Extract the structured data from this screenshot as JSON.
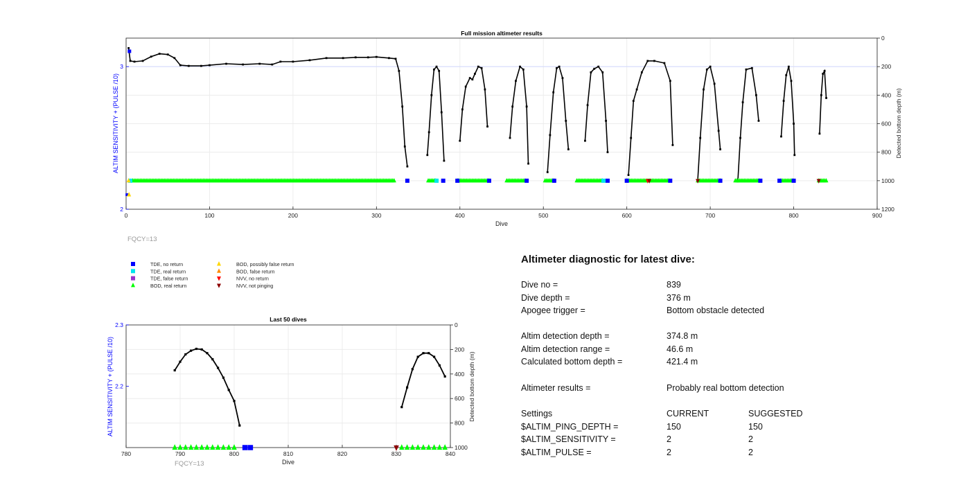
{
  "chart_data": [
    {
      "type": "line",
      "title": "Full mission altimeter results",
      "xlabel": "Dive",
      "ylabel_left": "ALTIM SENSITIVITY + (PULSE /10)",
      "ylabel_right": "Detected bottom depth (m)",
      "xlim": [
        0,
        900
      ],
      "ylim_left": [
        2,
        3.2
      ],
      "ylim_right_reversed": [
        0,
        1200
      ],
      "x_ticks": [
        "0",
        "100",
        "200",
        "300",
        "400",
        "500",
        "600",
        "700",
        "800",
        "900"
      ],
      "y_left_ticks": [
        "2",
        "3"
      ],
      "y_right_ticks": [
        "0",
        "200",
        "400",
        "600",
        "800",
        "1000",
        "1200"
      ],
      "grid": true,
      "reference_line_y": 3,
      "note": "FQCY=13",
      "series": [
        {
          "name": "Detected bottom depth",
          "segments": [
            [
              [
                3,
                70
              ],
              [
                5,
                160
              ],
              [
                10,
                165
              ],
              [
                20,
                160
              ],
              [
                30,
                130
              ],
              [
                40,
                110
              ],
              [
                50,
                115
              ],
              [
                58,
                140
              ],
              [
                65,
                190
              ],
              [
                75,
                195
              ],
              [
                90,
                195
              ],
              [
                100,
                190
              ],
              [
                120,
                180
              ],
              [
                140,
                185
              ],
              [
                160,
                180
              ],
              [
                175,
                185
              ],
              [
                185,
                165
              ],
              [
                200,
                165
              ],
              [
                220,
                155
              ],
              [
                240,
                140
              ],
              [
                260,
                140
              ],
              [
                275,
                135
              ],
              [
                290,
                135
              ],
              [
                300,
                132
              ],
              [
                315,
                140
              ],
              [
                323,
                145
              ],
              [
                327,
                230
              ],
              [
                331,
                480
              ],
              [
                334,
                760
              ],
              [
                337,
                900
              ]
            ],
            [
              [
                361,
                820
              ],
              [
                363,
                660
              ],
              [
                366,
                400
              ],
              [
                369,
                220
              ],
              [
                372,
                200
              ],
              [
                375,
                230
              ],
              [
                378,
                520
              ],
              [
                381,
                860
              ]
            ],
            [
              [
                400,
                720
              ],
              [
                403,
                500
              ],
              [
                407,
                340
              ],
              [
                412,
                280
              ],
              [
                415,
                290
              ],
              [
                418,
                250
              ],
              [
                422,
                200
              ],
              [
                426,
                210
              ],
              [
                430,
                360
              ],
              [
                433,
                620
              ]
            ],
            [
              [
                460,
                700
              ],
              [
                463,
                480
              ],
              [
                467,
                300
              ],
              [
                472,
                200
              ],
              [
                476,
                220
              ],
              [
                480,
                480
              ],
              [
                482,
                880
              ]
            ],
            [
              [
                505,
                940
              ],
              [
                508,
                680
              ],
              [
                512,
                380
              ],
              [
                516,
                210
              ],
              [
                519,
                200
              ],
              [
                523,
                280
              ],
              [
                527,
                580
              ],
              [
                530,
                780
              ]
            ],
            [
              [
                550,
                720
              ],
              [
                553,
                470
              ],
              [
                557,
                240
              ],
              [
                561,
                215
              ],
              [
                566,
                200
              ],
              [
                571,
                240
              ],
              [
                575,
                580
              ],
              [
                577,
                800
              ]
            ],
            [
              [
                602,
                960
              ],
              [
                605,
                700
              ],
              [
                608,
                440
              ],
              [
                612,
                360
              ],
              [
                618,
                240
              ],
              [
                625,
                160
              ],
              [
                633,
                160
              ],
              [
                645,
                175
              ],
              [
                652,
                300
              ],
              [
                655,
                750
              ]
            ],
            [
              [
                685,
                1000
              ],
              [
                688,
                700
              ],
              [
                692,
                360
              ],
              [
                696,
                220
              ],
              [
                700,
                200
              ],
              [
                705,
                320
              ],
              [
                710,
                650
              ],
              [
                712,
                780
              ]
            ],
            [
              [
                733,
                1005
              ],
              [
                736,
                700
              ],
              [
                739,
                450
              ],
              [
                743,
                220
              ],
              [
                750,
                210
              ],
              [
                755,
                400
              ],
              [
                758,
                580
              ]
            ],
            [
              [
                785,
                690
              ],
              [
                788,
                440
              ],
              [
                791,
                260
              ],
              [
                794,
                200
              ],
              [
                797,
                300
              ],
              [
                800,
                600
              ],
              [
                801,
                820
              ]
            ],
            [
              [
                831,
                670
              ],
              [
                833,
                400
              ],
              [
                835,
                250
              ],
              [
                837,
                230
              ],
              [
                839,
                420
              ]
            ]
          ]
        },
        {
          "name": "BOD, real return",
          "symbol": "triangle-up",
          "color": "#00ff00",
          "ranges": [
            [
              8,
              323
            ],
            [
              362,
              372
            ],
            [
              397,
              435
            ],
            [
              456,
              479
            ],
            [
              502,
              513
            ],
            [
              540,
              572
            ],
            [
              600,
              652
            ],
            [
              685,
              712
            ],
            [
              730,
              760
            ],
            [
              785,
              800
            ],
            [
              830,
              840
            ]
          ]
        },
        {
          "name": "TDE, no return",
          "symbol": "square",
          "color": "#0000ff",
          "points": [
            337,
            380,
            397,
            435,
            480,
            513,
            577,
            600,
            652,
            712,
            760,
            783,
            800
          ]
        },
        {
          "name": "TDE, real return",
          "symbol": "square",
          "color": "#00e5ee",
          "points": [
            5,
            372,
            572
          ]
        },
        {
          "name": "NVV, no return",
          "symbol": "triangle-down",
          "color": "#ff0000",
          "points": [
            625
          ]
        },
        {
          "name": "NVV, not pinging",
          "symbol": "triangle-down",
          "color": "#8b0000",
          "points": [
            627,
            685,
            830
          ]
        },
        {
          "name": "BOD, possibly false return",
          "symbol": "triangle-up",
          "color": "#ffd700",
          "points": [
            3
          ]
        }
      ]
    },
    {
      "type": "line",
      "title": "Last 50 dives",
      "xlabel": "Dive",
      "ylabel_left": "ALTIM SENSITIVITY + (PULSE /10)",
      "ylabel_right": "Detected bottom depth (m)",
      "xlim": [
        780,
        840
      ],
      "ylim_left": [
        2.1,
        2.3
      ],
      "ylim_right_reversed": [
        0,
        1000
      ],
      "x_ticks": [
        "780",
        "790",
        "800",
        "810",
        "820",
        "830",
        "840"
      ],
      "y_left_ticks": [
        "2.2",
        "2.3"
      ],
      "y_right_ticks": [
        "0",
        "200",
        "400",
        "600",
        "800",
        "1000"
      ],
      "grid": true,
      "note": "FQCY=13",
      "series": [
        {
          "name": "Detected bottom depth",
          "segments": [
            [
              [
                789,
                370
              ],
              [
                790,
                300
              ],
              [
                791,
                240
              ],
              [
                792,
                210
              ],
              [
                793,
                195
              ],
              [
                794,
                200
              ],
              [
                795,
                230
              ],
              [
                796,
                280
              ],
              [
                797,
                350
              ],
              [
                798,
                430
              ],
              [
                799,
                530
              ],
              [
                800,
                620
              ],
              [
                801,
                820
              ]
            ],
            [
              [
                831,
                670
              ],
              [
                832,
                510
              ],
              [
                833,
                360
              ],
              [
                834,
                260
              ],
              [
                835,
                230
              ],
              [
                836,
                230
              ],
              [
                837,
                260
              ],
              [
                838,
                330
              ],
              [
                839,
                420
              ]
            ]
          ]
        },
        {
          "name": "BOD, real return",
          "symbol": "triangle-up",
          "color": "#00ff00",
          "points": [
            789,
            790,
            791,
            792,
            793,
            794,
            795,
            796,
            797,
            798,
            799,
            800,
            831,
            832,
            833,
            834,
            835,
            836,
            837,
            838,
            839
          ]
        },
        {
          "name": "TDE, no return",
          "symbol": "square",
          "color": "#0000ff",
          "points": [
            802,
            803
          ]
        },
        {
          "name": "NVV, not pinging",
          "symbol": "triangle-down",
          "color": "#8b0000",
          "points": [
            830
          ]
        }
      ]
    }
  ],
  "legend": {
    "col1": [
      {
        "label": "TDE, no return",
        "symbol": "square",
        "color": "#0000ff"
      },
      {
        "label": "TDE, real return",
        "symbol": "square",
        "color": "#00e5ee"
      },
      {
        "label": "TDE, false return",
        "symbol": "square",
        "color": "#9932cc"
      },
      {
        "label": "BOD, real return",
        "symbol": "triangle-up",
        "color": "#00ff00"
      }
    ],
    "col2": [
      {
        "label": "BOD, possibly false return",
        "symbol": "triangle-up",
        "color": "#ffd700"
      },
      {
        "label": "BOD, false return",
        "symbol": "triangle-up",
        "color": "#ff8c00"
      },
      {
        "label": "NVV, no return",
        "symbol": "triangle-down",
        "color": "#ff0000"
      },
      {
        "label": "NVV, not pinging",
        "symbol": "triangle-down",
        "color": "#8b0000"
      }
    ]
  },
  "diagnostic": {
    "title": "Altimeter diagnostic for latest dive:",
    "dive_no_label": "Dive no =",
    "dive_no": "839",
    "dive_depth_label": "Dive depth =",
    "dive_depth": "376 m",
    "apogee_label": "Apogee trigger =",
    "apogee": "Bottom obstacle detected",
    "altim_depth_label": "Altim detection depth =",
    "altim_depth": "374.8 m",
    "altim_range_label": "Altim detection range =",
    "altim_range": "46.6 m",
    "calc_depth_label": "Calculated bottom depth =",
    "calc_depth": "421.4 m",
    "results_label": "Altimeter results =",
    "results": "Probably real bottom detection",
    "settings_label": "Settings",
    "current_label": "CURRENT",
    "suggested_label": "SUGGESTED",
    "settings": [
      {
        "name": "$ALTIM_PING_DEPTH =",
        "current": "150",
        "suggested": "150"
      },
      {
        "name": "$ALTIM_SENSITIVITY =",
        "current": "2",
        "suggested": "2"
      },
      {
        "name": "$ALTIM_PULSE =",
        "current": "2",
        "suggested": "2"
      }
    ]
  }
}
